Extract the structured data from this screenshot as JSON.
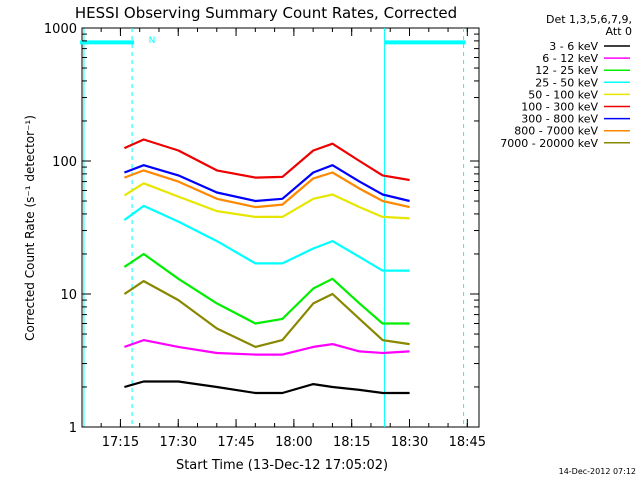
{
  "header": {
    "title": "HESSI Observing Summary Count Rates, Corrected",
    "det_line1": "Det 1,3,5,6,7,9,",
    "det_line2": "Att 0"
  },
  "footer": {
    "timestamp": "14-Dec-2012 07:12"
  },
  "chart_data": {
    "type": "line",
    "title": "HESSI Observing Summary Count Rates, Corrected",
    "xlabel": "Start Time (13-Dec-12 17:05:02)",
    "ylabel": "Corrected Count Rate (s⁻¹ detector⁻¹)",
    "yscale": "log",
    "xlim": [
      "17:05:02",
      "18:48:00"
    ],
    "ylim": [
      1,
      1000
    ],
    "x_tick_labels": [
      "17:15",
      "17:30",
      "17:45",
      "18:00",
      "18:15",
      "18:30",
      "18:45"
    ],
    "x_ticks_min": [
      9.97,
      24.97,
      39.97,
      54.97,
      69.97,
      84.97,
      99.97
    ],
    "y_tick_labels": [
      "1",
      "10",
      "100",
      "1000"
    ],
    "y_ticks": [
      1,
      10,
      100,
      1000
    ],
    "legend_position": "right",
    "flag_label": "N",
    "night_marks_min": [
      13.0,
      99.0
    ],
    "saa_marks_min": [
      -0.5,
      78.5
    ],
    "attenuator_level": 780,
    "x_min": [
      11,
      16,
      25,
      35,
      45,
      52,
      60,
      65,
      72,
      78,
      85
    ],
    "series": [
      {
        "name": "3 - 6 keV",
        "color": "#000000",
        "values": [
          2.0,
          2.2,
          2.2,
          2.0,
          1.8,
          1.8,
          2.1,
          2.0,
          1.9,
          1.8,
          1.8
        ]
      },
      {
        "name": "6 - 12 keV",
        "color": "#ff00ff",
        "values": [
          4.0,
          4.5,
          4.0,
          3.6,
          3.5,
          3.5,
          4.0,
          4.2,
          3.7,
          3.6,
          3.7
        ]
      },
      {
        "name": "12 - 25 keV",
        "color": "#00ee00",
        "values": [
          16,
          20,
          13,
          8.5,
          6.0,
          6.5,
          11,
          13,
          8.5,
          6.0,
          6.0
        ]
      },
      {
        "name": "25 - 50 keV",
        "color": "#00ffff",
        "values": [
          36,
          46,
          35,
          25,
          17,
          17,
          22,
          25,
          19,
          15,
          15
        ]
      },
      {
        "name": "50 - 100 keV",
        "color": "#e6e600",
        "values": [
          55,
          68,
          54,
          42,
          38,
          38,
          52,
          56,
          45,
          38,
          37
        ]
      },
      {
        "name": "100 - 300 keV",
        "color": "#ee0000",
        "values": [
          125,
          145,
          120,
          85,
          75,
          76,
          120,
          135,
          100,
          78,
          72
        ]
      },
      {
        "name": "300 - 800 keV",
        "color": "#0000ff",
        "values": [
          82,
          93,
          78,
          58,
          50,
          52,
          82,
          93,
          70,
          56,
          50
        ]
      },
      {
        "name": "800 - 7000 keV",
        "color": "#ff8800",
        "values": [
          75,
          85,
          70,
          52,
          45,
          47,
          74,
          82,
          62,
          50,
          45
        ]
      },
      {
        "name": "7000 - 20000 keV",
        "color": "#888800",
        "values": [
          10,
          12.5,
          9.0,
          5.5,
          4.0,
          4.5,
          8.5,
          10,
          6.5,
          4.5,
          4.2
        ]
      }
    ]
  }
}
